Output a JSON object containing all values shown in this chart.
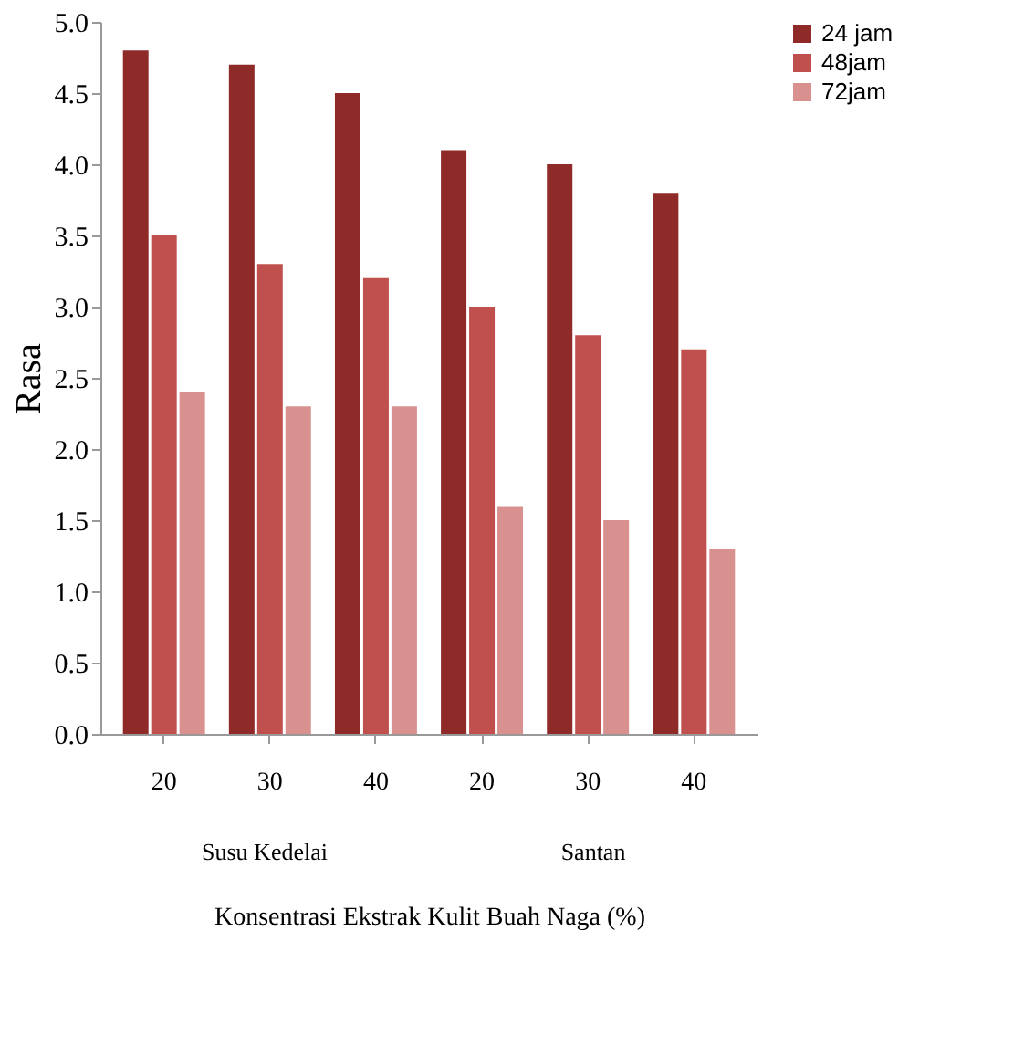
{
  "chart_data": {
    "type": "bar",
    "ylabel": "Rasa",
    "xlabel": "Konsentrasi Ekstrak Kulit Buah Naga (%)",
    "categories": [
      "20",
      "30",
      "40",
      "20",
      "30",
      "40"
    ],
    "series": [
      {
        "name": "24 jam",
        "color": "#8e2a28",
        "values": [
          4.8,
          4.7,
          4.5,
          4.1,
          4.0,
          3.8
        ]
      },
      {
        "name": "48jam",
        "color": "#c0504d",
        "values": [
          3.5,
          3.3,
          3.2,
          3.0,
          2.8,
          2.7
        ]
      },
      {
        "name": "72jam",
        "color": "#d9918f",
        "values": [
          2.4,
          2.3,
          2.3,
          1.6,
          1.5,
          1.3
        ]
      }
    ],
    "annotations": [
      "Susu Kedelai",
      "Santan"
    ],
    "ylim": [
      0,
      5
    ],
    "yticks": [
      {
        "value": 0,
        "label": "0.0"
      },
      {
        "value": 0.5,
        "label": "0.5"
      },
      {
        "value": 1,
        "label": "1.0"
      },
      {
        "value": 1.5,
        "label": "1.5"
      },
      {
        "value": 2,
        "label": "2.0"
      },
      {
        "value": 2.5,
        "label": "2.5"
      },
      {
        "value": 3,
        "label": "3.0"
      },
      {
        "value": 3.5,
        "label": "3.5"
      },
      {
        "value": 4,
        "label": "4.0"
      },
      {
        "value": 4.5,
        "label": "4.5"
      },
      {
        "value": 5,
        "label": "5.0"
      }
    ],
    "grid": false,
    "legend": "right"
  }
}
